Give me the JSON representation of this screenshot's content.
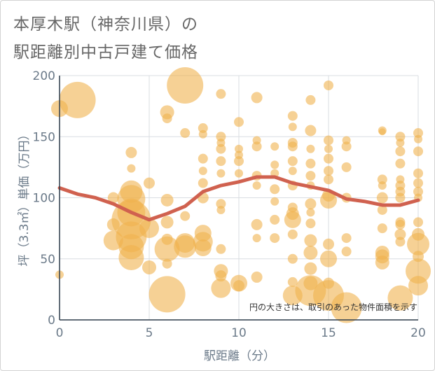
{
  "chart_data": {
    "type": "scatter",
    "title_line1": "本厚木駅（神奈川県）の",
    "title_line2": "駅距離別中古戸建て価格",
    "xlabel": "駅距離（分）",
    "ylabel": "坪（3.3㎡）単価（万円）",
    "note": "円の大きさは、取引のあった物件面積を示す",
    "xlim": [
      0,
      20
    ],
    "ylim": [
      0,
      200
    ],
    "xticks": [
      0,
      5,
      10,
      15,
      20
    ],
    "yticks": [
      0,
      50,
      100,
      150,
      200
    ],
    "xtick_labels": [
      "0",
      "5",
      "10",
      "15",
      "20"
    ],
    "ytick_labels": [
      "0",
      "50",
      "100",
      "150",
      "200"
    ],
    "bubble_color": "#f0b24f",
    "line_color": "#d0614f",
    "trend": {
      "x": [
        0,
        1,
        2,
        3,
        4,
        5,
        6,
        7,
        8,
        9,
        10,
        11,
        12,
        13,
        14,
        15,
        16,
        17,
        18,
        19,
        20
      ],
      "y": [
        108,
        103,
        100,
        95,
        88,
        82,
        87,
        93,
        105,
        110,
        113,
        117,
        117,
        112,
        109,
        106,
        99,
        97,
        94,
        94,
        98
      ]
    },
    "points": [
      {
        "x": 0,
        "y": 37,
        "s": 6
      },
      {
        "x": 0,
        "y": 173,
        "s": 12
      },
      {
        "x": 1,
        "y": 180,
        "s": 26
      },
      {
        "x": 3,
        "y": 100,
        "s": 8
      },
      {
        "x": 3,
        "y": 78,
        "s": 9
      },
      {
        "x": 3,
        "y": 65,
        "s": 14
      },
      {
        "x": 4,
        "y": 137,
        "s": 8
      },
      {
        "x": 4,
        "y": 124,
        "s": 6
      },
      {
        "x": 4,
        "y": 105,
        "s": 16
      },
      {
        "x": 4,
        "y": 99,
        "s": 20
      },
      {
        "x": 4,
        "y": 88,
        "s": 20
      },
      {
        "x": 4,
        "y": 82,
        "s": 28
      },
      {
        "x": 4,
        "y": 68,
        "s": 22
      },
      {
        "x": 4,
        "y": 60,
        "s": 18
      },
      {
        "x": 4,
        "y": 51,
        "s": 18
      },
      {
        "x": 5,
        "y": 112,
        "s": 8
      },
      {
        "x": 5,
        "y": 75,
        "s": 14
      },
      {
        "x": 5,
        "y": 43,
        "s": 10
      },
      {
        "x": 6,
        "y": 170,
        "s": 10
      },
      {
        "x": 6,
        "y": 165,
        "s": 7
      },
      {
        "x": 6,
        "y": 98,
        "s": 9
      },
      {
        "x": 6,
        "y": 80,
        "s": 9
      },
      {
        "x": 6,
        "y": 66,
        "s": 8
      },
      {
        "x": 6,
        "y": 58,
        "s": 18
      },
      {
        "x": 6,
        "y": 46,
        "s": 7
      },
      {
        "x": 6,
        "y": 21,
        "s": 26
      },
      {
        "x": 7,
        "y": 192,
        "s": 26
      },
      {
        "x": 7,
        "y": 153,
        "s": 7
      },
      {
        "x": 7,
        "y": 85,
        "s": 7
      },
      {
        "x": 7,
        "y": 63,
        "s": 14
      },
      {
        "x": 7,
        "y": 60,
        "s": 16
      },
      {
        "x": 8,
        "y": 157,
        "s": 7
      },
      {
        "x": 8,
        "y": 152,
        "s": 6
      },
      {
        "x": 8,
        "y": 132,
        "s": 7
      },
      {
        "x": 8,
        "y": 122,
        "s": 6
      },
      {
        "x": 8,
        "y": 112,
        "s": 7
      },
      {
        "x": 8,
        "y": 100,
        "s": 8
      },
      {
        "x": 8,
        "y": 71,
        "s": 12
      },
      {
        "x": 8,
        "y": 64,
        "s": 14
      },
      {
        "x": 8,
        "y": 59,
        "s": 12
      },
      {
        "x": 9,
        "y": 185,
        "s": 7
      },
      {
        "x": 9,
        "y": 150,
        "s": 7
      },
      {
        "x": 9,
        "y": 145,
        "s": 6
      },
      {
        "x": 9,
        "y": 140,
        "s": 7
      },
      {
        "x": 9,
        "y": 130,
        "s": 7
      },
      {
        "x": 9,
        "y": 120,
        "s": 6
      },
      {
        "x": 9,
        "y": 95,
        "s": 7
      },
      {
        "x": 9,
        "y": 90,
        "s": 6
      },
      {
        "x": 9,
        "y": 58,
        "s": 7
      },
      {
        "x": 9,
        "y": 40,
        "s": 10
      },
      {
        "x": 9,
        "y": 36,
        "s": 8
      },
      {
        "x": 9,
        "y": 26,
        "s": 14
      },
      {
        "x": 10,
        "y": 162,
        "s": 7
      },
      {
        "x": 10,
        "y": 140,
        "s": 6
      },
      {
        "x": 10,
        "y": 135,
        "s": 6
      },
      {
        "x": 10,
        "y": 130,
        "s": 7
      },
      {
        "x": 10,
        "y": 120,
        "s": 6
      },
      {
        "x": 10,
        "y": 30,
        "s": 12
      },
      {
        "x": 10,
        "y": 28,
        "s": 8
      },
      {
        "x": 11,
        "y": 182,
        "s": 8
      },
      {
        "x": 11,
        "y": 147,
        "s": 6
      },
      {
        "x": 11,
        "y": 142,
        "s": 7
      },
      {
        "x": 11,
        "y": 118,
        "s": 7
      },
      {
        "x": 11,
        "y": 110,
        "s": 6
      },
      {
        "x": 11,
        "y": 78,
        "s": 8
      },
      {
        "x": 11,
        "y": 67,
        "s": 6
      },
      {
        "x": 11,
        "y": 35,
        "s": 8
      },
      {
        "x": 12,
        "y": 142,
        "s": 6
      },
      {
        "x": 12,
        "y": 127,
        "s": 6
      },
      {
        "x": 12,
        "y": 120,
        "s": 6
      },
      {
        "x": 12,
        "y": 107,
        "s": 7
      },
      {
        "x": 12,
        "y": 97,
        "s": 6
      },
      {
        "x": 12,
        "y": 82,
        "s": 7
      },
      {
        "x": 12,
        "y": 67,
        "s": 7
      },
      {
        "x": 13,
        "y": 167,
        "s": 7
      },
      {
        "x": 13,
        "y": 158,
        "s": 6
      },
      {
        "x": 13,
        "y": 145,
        "s": 7
      },
      {
        "x": 13,
        "y": 142,
        "s": 7
      },
      {
        "x": 13,
        "y": 130,
        "s": 7
      },
      {
        "x": 13,
        "y": 122,
        "s": 6
      },
      {
        "x": 13,
        "y": 110,
        "s": 7
      },
      {
        "x": 13,
        "y": 92,
        "s": 7
      },
      {
        "x": 13,
        "y": 87,
        "s": 9
      },
      {
        "x": 13,
        "y": 82,
        "s": 12
      },
      {
        "x": 13,
        "y": 70,
        "s": 7
      },
      {
        "x": 13,
        "y": 50,
        "s": 7
      },
      {
        "x": 13,
        "y": 31,
        "s": 7
      },
      {
        "x": 13,
        "y": 20,
        "s": 14
      },
      {
        "x": 14,
        "y": 180,
        "s": 7
      },
      {
        "x": 14,
        "y": 155,
        "s": 8
      },
      {
        "x": 14,
        "y": 140,
        "s": 6
      },
      {
        "x": 14,
        "y": 128,
        "s": 7
      },
      {
        "x": 14,
        "y": 118,
        "s": 7
      },
      {
        "x": 14,
        "y": 110,
        "s": 6
      },
      {
        "x": 14,
        "y": 95,
        "s": 8
      },
      {
        "x": 14,
        "y": 88,
        "s": 6
      },
      {
        "x": 14,
        "y": 79,
        "s": 7
      },
      {
        "x": 14,
        "y": 65,
        "s": 9
      },
      {
        "x": 14,
        "y": 55,
        "s": 10
      },
      {
        "x": 14,
        "y": 42,
        "s": 9
      },
      {
        "x": 14,
        "y": 30,
        "s": 10
      },
      {
        "x": 14,
        "y": 24,
        "s": 22
      },
      {
        "x": 15,
        "y": 192,
        "s": 7
      },
      {
        "x": 15,
        "y": 147,
        "s": 7
      },
      {
        "x": 15,
        "y": 140,
        "s": 6
      },
      {
        "x": 15,
        "y": 132,
        "s": 7
      },
      {
        "x": 15,
        "y": 122,
        "s": 7
      },
      {
        "x": 15,
        "y": 115,
        "s": 7
      },
      {
        "x": 15,
        "y": 102,
        "s": 9
      },
      {
        "x": 15,
        "y": 98,
        "s": 12
      },
      {
        "x": 15,
        "y": 62,
        "s": 8
      },
      {
        "x": 15,
        "y": 50,
        "s": 12
      },
      {
        "x": 15,
        "y": 30,
        "s": 8
      },
      {
        "x": 15,
        "y": 20,
        "s": 22
      },
      {
        "x": 16,
        "y": 147,
        "s": 6
      },
      {
        "x": 16,
        "y": 142,
        "s": 7
      },
      {
        "x": 16,
        "y": 125,
        "s": 7
      },
      {
        "x": 16,
        "y": 100,
        "s": 7
      },
      {
        "x": 16,
        "y": 67,
        "s": 7
      },
      {
        "x": 16,
        "y": 56,
        "s": 7
      },
      {
        "x": 16,
        "y": 10,
        "s": 22
      },
      {
        "x": 18,
        "y": 155,
        "s": 6
      },
      {
        "x": 18,
        "y": 154,
        "s": 5
      },
      {
        "x": 18,
        "y": 115,
        "s": 7
      },
      {
        "x": 18,
        "y": 110,
        "s": 6
      },
      {
        "x": 18,
        "y": 100,
        "s": 8
      },
      {
        "x": 18,
        "y": 90,
        "s": 7
      },
      {
        "x": 18,
        "y": 75,
        "s": 7
      },
      {
        "x": 18,
        "y": 55,
        "s": 10
      },
      {
        "x": 18,
        "y": 52,
        "s": 10
      },
      {
        "x": 18,
        "y": 47,
        "s": 10
      },
      {
        "x": 19,
        "y": 150,
        "s": 7
      },
      {
        "x": 19,
        "y": 145,
        "s": 6
      },
      {
        "x": 19,
        "y": 138,
        "s": 7
      },
      {
        "x": 19,
        "y": 128,
        "s": 7
      },
      {
        "x": 19,
        "y": 115,
        "s": 6
      },
      {
        "x": 19,
        "y": 110,
        "s": 7
      },
      {
        "x": 19,
        "y": 105,
        "s": 7
      },
      {
        "x": 19,
        "y": 100,
        "s": 7
      },
      {
        "x": 19,
        "y": 80,
        "s": 7
      },
      {
        "x": 19,
        "y": 78,
        "s": 7
      },
      {
        "x": 19,
        "y": 70,
        "s": 8
      },
      {
        "x": 19,
        "y": 64,
        "s": 7
      },
      {
        "x": 19,
        "y": 18,
        "s": 18
      },
      {
        "x": 20,
        "y": 153,
        "s": 7
      },
      {
        "x": 20,
        "y": 148,
        "s": 6
      },
      {
        "x": 20,
        "y": 138,
        "s": 7
      },
      {
        "x": 20,
        "y": 120,
        "s": 7
      },
      {
        "x": 20,
        "y": 112,
        "s": 7
      },
      {
        "x": 20,
        "y": 105,
        "s": 7
      },
      {
        "x": 20,
        "y": 100,
        "s": 6
      },
      {
        "x": 20,
        "y": 80,
        "s": 7
      },
      {
        "x": 20,
        "y": 70,
        "s": 9
      },
      {
        "x": 20,
        "y": 62,
        "s": 16
      },
      {
        "x": 20,
        "y": 52,
        "s": 8
      },
      {
        "x": 20,
        "y": 40,
        "s": 18
      },
      {
        "x": 20,
        "y": 28,
        "s": 14
      }
    ]
  }
}
